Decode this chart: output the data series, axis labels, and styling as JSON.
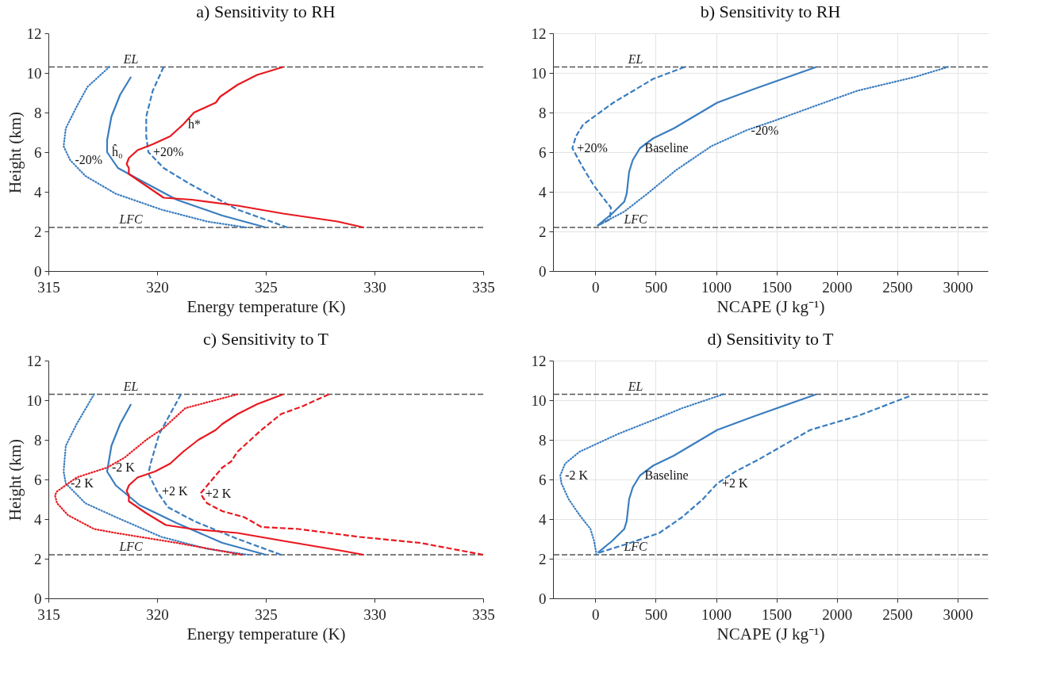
{
  "chart_data": [
    {
      "type": "line",
      "title": "a) Sensitivity to RH",
      "xlabel": "Energy temperature (K)",
      "ylabel": "Height (km)",
      "xlim": [
        315,
        335
      ],
      "ylim": [
        0,
        12
      ],
      "xticks": [
        315,
        320,
        325,
        330,
        335
      ],
      "yticks": [
        0,
        2,
        4,
        6,
        8,
        10,
        12
      ],
      "grid": false,
      "ref_lines": [
        {
          "axis": "y",
          "value": 10.3,
          "label": "EL",
          "color": "#555555",
          "line_style": "dashed"
        },
        {
          "axis": "y",
          "value": 2.2,
          "label": "LFC",
          "color": "#555555",
          "line_style": "dashed"
        }
      ],
      "series": [
        {
          "name": "-20%",
          "color": "#3a7dbf",
          "line_style": "dotted",
          "x": [
            324.1,
            322.3,
            320.2,
            318.1,
            316.7,
            316.0,
            315.7,
            315.8,
            316.3,
            316.8,
            317.8
          ],
          "values": [
            2.2,
            2.5,
            3.1,
            3.9,
            4.8,
            5.6,
            6.3,
            7.2,
            8.3,
            9.3,
            10.3
          ]
        },
        {
          "name": "ĥ₀",
          "color": "#3a7dbf",
          "line_style": "solid",
          "x": [
            325.0,
            323.0,
            320.9,
            319.2,
            318.2,
            317.7,
            317.7,
            317.9,
            318.3,
            318.8
          ],
          "values": [
            2.2,
            2.8,
            3.6,
            4.6,
            5.2,
            6.0,
            6.6,
            7.8,
            8.9,
            9.8
          ]
        },
        {
          "name": "+20%",
          "color": "#3a7dbf",
          "line_style": "dashed",
          "x": [
            326.0,
            323.7,
            321.5,
            320.3,
            319.6,
            319.5,
            319.5,
            319.8,
            320.3
          ],
          "values": [
            2.2,
            3.1,
            4.4,
            5.2,
            6.0,
            6.8,
            7.8,
            9.1,
            10.3
          ]
        },
        {
          "name": "h*",
          "color": "#e8191f",
          "line_style": "solid",
          "x": [
            329.5,
            328.3,
            325.8,
            323.7,
            321.6,
            320.3,
            319.5,
            318.7,
            318.7,
            318.6,
            318.7,
            318.8,
            319.1,
            319.8,
            320.6,
            321.2,
            321.7,
            322.7,
            322.9,
            323.7,
            324.6,
            325.8
          ],
          "values": [
            2.2,
            2.5,
            2.9,
            3.3,
            3.6,
            3.7,
            4.3,
            4.9,
            5.2,
            5.4,
            5.7,
            5.8,
            6.1,
            6.4,
            6.8,
            7.4,
            8.0,
            8.5,
            8.8,
            9.4,
            9.9,
            10.3
          ]
        }
      ]
    },
    {
      "type": "line",
      "title": "b) Sensitivity to RH",
      "xlabel": "NCAPE (J kg⁻¹)",
      "xlim": [
        -350,
        3250
      ],
      "ylim": [
        0,
        12
      ],
      "xticks": [
        0,
        500,
        1000,
        1500,
        2000,
        2500,
        3000
      ],
      "yticks": [
        0,
        2,
        4,
        6,
        8,
        10,
        12
      ],
      "grid": true,
      "ref_lines": [
        {
          "axis": "y",
          "value": 10.3,
          "label": "EL",
          "color": "#555555",
          "line_style": "dashed"
        },
        {
          "axis": "y",
          "value": 2.2,
          "label": "LFC",
          "color": "#555555",
          "line_style": "dashed"
        }
      ],
      "series": [
        {
          "name": "+20%",
          "color": "#3a7dbf",
          "line_style": "dashed",
          "x": [
            20,
            120,
            130,
            90,
            -10,
            -110,
            -190,
            -160,
            -100,
            150,
            480,
            740
          ],
          "values": [
            2.3,
            2.6,
            3.2,
            3.5,
            4.3,
            5.3,
            6.2,
            6.8,
            7.4,
            8.5,
            9.7,
            10.3
          ]
        },
        {
          "name": "Baseline",
          "color": "#3a7dbf",
          "line_style": "solid",
          "x": [
            20,
            140,
            240,
            260,
            280,
            310,
            370,
            480,
            650,
            1010,
            1320,
            1830
          ],
          "values": [
            2.3,
            2.9,
            3.5,
            3.9,
            5.0,
            5.6,
            6.2,
            6.7,
            7.2,
            8.5,
            9.2,
            10.3
          ]
        },
        {
          "name": "-20%",
          "color": "#3a7dbf",
          "line_style": "dotted",
          "x": [
            20,
            240,
            430,
            670,
            960,
            1250,
            1490,
            1760,
            2170,
            2650,
            2920
          ],
          "values": [
            2.3,
            3.0,
            3.9,
            5.1,
            6.3,
            7.1,
            7.6,
            8.2,
            9.1,
            9.8,
            10.3
          ]
        }
      ]
    },
    {
      "type": "line",
      "title": "c) Sensitivity to T",
      "xlabel": "Energy temperature (K)",
      "ylabel": "Height (km)",
      "xlim": [
        315,
        335
      ],
      "ylim": [
        0,
        12
      ],
      "xticks": [
        315,
        320,
        325,
        330,
        335
      ],
      "yticks": [
        0,
        2,
        4,
        6,
        8,
        10,
        12
      ],
      "grid": false,
      "ref_lines": [
        {
          "axis": "y",
          "value": 10.3,
          "label": "EL",
          "color": "#555555",
          "line_style": "dashed"
        },
        {
          "axis": "y",
          "value": 2.2,
          "label": "LFC",
          "color": "#555555",
          "line_style": "dashed"
        }
      ],
      "series": [
        {
          "name": "-2 K",
          "color": "#3a7dbf",
          "line_style": "dotted",
          "x": [
            324.2,
            322.3,
            320.2,
            318.1,
            316.7,
            315.8,
            315.7,
            315.8,
            316.3,
            317.1
          ],
          "values": [
            2.2,
            2.5,
            3.1,
            4.1,
            4.8,
            5.8,
            6.4,
            7.7,
            8.8,
            10.3
          ]
        },
        {
          "color": "#3a7dbf",
          "line_style": "solid",
          "x": [
            325.0,
            323.0,
            320.9,
            319.2,
            318.1,
            317.7,
            317.9,
            318.3,
            318.8
          ],
          "values": [
            2.2,
            2.8,
            3.8,
            4.7,
            5.7,
            6.4,
            7.7,
            8.8,
            9.8
          ]
        },
        {
          "name": "+2 K",
          "color": "#3a7dbf",
          "line_style": "dashed",
          "x": [
            325.7,
            323.7,
            321.7,
            320.5,
            320.0,
            319.6,
            319.7,
            320.1,
            321.1
          ],
          "values": [
            2.2,
            3.0,
            3.9,
            4.6,
            5.4,
            6.3,
            6.8,
            8.3,
            10.3
          ]
        },
        {
          "name": "-2 K",
          "color": "#e8191f",
          "line_style": "dotted",
          "x": [
            323.9,
            320.9,
            318.1,
            317.1,
            315.9,
            315.4,
            315.3,
            315.4,
            316.3,
            317.7,
            318.5,
            319.5,
            320.3,
            321.3,
            323.7
          ],
          "values": [
            2.2,
            2.8,
            3.3,
            3.5,
            4.2,
            4.8,
            5.2,
            5.4,
            6.1,
            6.6,
            7.1,
            8.0,
            8.6,
            9.6,
            10.3
          ]
        },
        {
          "color": "#e8191f",
          "line_style": "solid",
          "x": [
            329.5,
            328.5,
            325.8,
            323.7,
            321.6,
            320.4,
            319.5,
            318.7,
            318.7,
            318.6,
            318.7,
            319.1,
            319.9,
            320.6,
            321.2,
            321.9,
            322.7,
            323.0,
            323.7,
            324.6,
            325.8
          ],
          "values": [
            2.2,
            2.4,
            2.9,
            3.3,
            3.5,
            3.7,
            4.3,
            4.9,
            5.2,
            5.4,
            5.7,
            6.1,
            6.4,
            6.8,
            7.4,
            8.0,
            8.5,
            8.8,
            9.3,
            9.8,
            10.3
          ]
        },
        {
          "name": "+2 K",
          "color": "#e8191f",
          "line_style": "dashed",
          "x": [
            335.0,
            332.1,
            329.3,
            326.5,
            324.8,
            324.0,
            323.0,
            322.3,
            322.1,
            322.0,
            323.0,
            323.4,
            323.7,
            324.3,
            324.8,
            325.7,
            326.7,
            327.9
          ],
          "values": [
            2.2,
            2.8,
            3.1,
            3.5,
            3.6,
            4.1,
            4.4,
            4.8,
            5.1,
            5.3,
            6.6,
            6.9,
            7.4,
            8.0,
            8.5,
            9.3,
            9.7,
            10.3
          ]
        }
      ]
    },
    {
      "type": "line",
      "title": "d) Sensitivity to T",
      "xlabel": "NCAPE (J kg⁻¹)",
      "xlim": [
        -350,
        3250
      ],
      "ylim": [
        0,
        12
      ],
      "xticks": [
        0,
        500,
        1000,
        1500,
        2000,
        2500,
        3000
      ],
      "yticks": [
        0,
        2,
        4,
        6,
        8,
        10,
        12
      ],
      "grid": true,
      "ref_lines": [
        {
          "axis": "y",
          "value": 10.3,
          "label": "EL",
          "color": "#555555",
          "line_style": "dashed"
        },
        {
          "axis": "y",
          "value": 2.2,
          "label": "LFC",
          "color": "#555555",
          "line_style": "dashed"
        }
      ],
      "series": [
        {
          "name": "-2 K",
          "color": "#3a7dbf",
          "line_style": "dotted",
          "x": [
            10,
            -10,
            -40,
            -130,
            -220,
            -280,
            -290,
            -250,
            -130,
            190,
            480,
            720,
            1060
          ],
          "values": [
            2.2,
            2.9,
            3.5,
            4.2,
            5.0,
            5.8,
            6.2,
            6.8,
            7.4,
            8.3,
            9.0,
            9.6,
            10.3
          ]
        },
        {
          "name": "Baseline",
          "color": "#3a7dbf",
          "line_style": "solid",
          "x": [
            20,
            140,
            240,
            260,
            280,
            310,
            370,
            480,
            650,
            1010,
            1320,
            1830
          ],
          "values": [
            2.3,
            2.9,
            3.5,
            3.9,
            5.0,
            5.6,
            6.2,
            6.7,
            7.2,
            8.5,
            9.2,
            10.3
          ]
        },
        {
          "name": "+2 K",
          "color": "#3a7dbf",
          "line_style": "dashed",
          "x": [
            30,
            290,
            530,
            720,
            890,
            1010,
            1160,
            1350,
            1780,
            2170,
            2600
          ],
          "values": [
            2.3,
            2.8,
            3.3,
            4.1,
            5.0,
            5.8,
            6.4,
            7.0,
            8.5,
            9.2,
            10.2
          ]
        }
      ]
    }
  ]
}
